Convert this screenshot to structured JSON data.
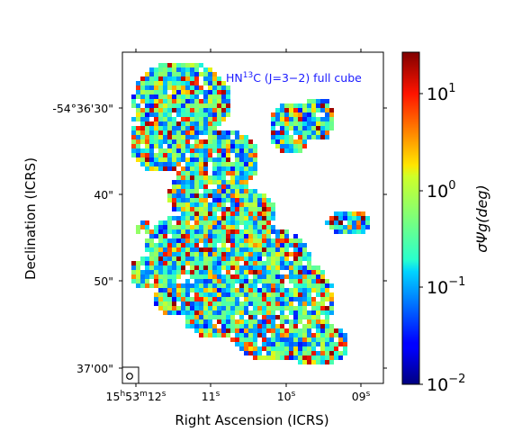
{
  "chart_data": {
    "type": "heatmap",
    "title": "",
    "annotation": {
      "prefix": "HN",
      "superscript": "13",
      "suffix": "C (J=3−2) full cube",
      "color": "#1a1aff"
    },
    "xlabel": "Right Ascension (ICRS)",
    "ylabel": "Declination (ICRS)",
    "x_ticks": [
      {
        "h": "15",
        "hs": "h",
        "m": "53",
        "ms": "m",
        "s": "12",
        "ss": "s"
      },
      {
        "s": "11",
        "ss": "s"
      },
      {
        "s": "10",
        "ss": "s"
      },
      {
        "s": "09",
        "ss": "s"
      }
    ],
    "y_ticks": [
      "-54°36'30\"",
      "40\"",
      "50\"",
      "37'00\""
    ],
    "colorbar": {
      "scale": "log",
      "range": [
        0.01,
        30
      ],
      "colormap": "jet",
      "label": "σΨg(deg)",
      "ticks": [
        {
          "base": "10",
          "exp": "1"
        },
        {
          "base": "10",
          "exp": "0"
        },
        {
          "base": "10",
          "exp": "−1"
        },
        {
          "base": "10",
          "exp": "−2"
        }
      ]
    },
    "beam": "circle (lower-left)",
    "colors": {
      "background": "#ffffff",
      "high": "#800000",
      "low": "#00007f"
    }
  }
}
